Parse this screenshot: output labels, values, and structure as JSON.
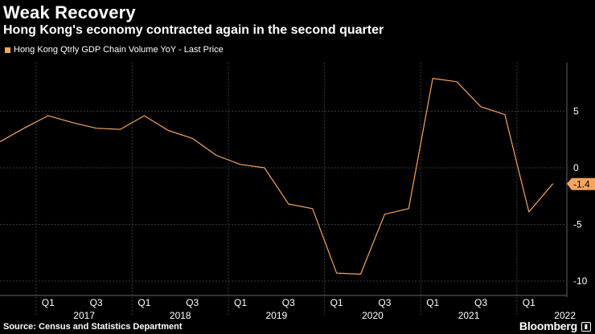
{
  "chart_data": {
    "type": "line",
    "title": "Weak Recovery",
    "subtitle": "Hong Kong's economy contracted again in the second quarter",
    "series": [
      {
        "name": "Hong Kong Qtrly GDP Chain Volume YoY - Last Price",
        "color": "#f4a460",
        "values": [
          2.3,
          3.5,
          4.6,
          4.0,
          3.5,
          3.4,
          4.6,
          3.3,
          2.6,
          1.1,
          0.3,
          0.0,
          -3.2,
          -3.6,
          -9.3,
          -9.4,
          -4.1,
          -3.6,
          7.9,
          7.6,
          5.4,
          4.7,
          -3.9,
          -1.4
        ]
      }
    ],
    "x": [
      "2016 Q3",
      "2016 Q4",
      "2017 Q1",
      "2017 Q2",
      "2017 Q3",
      "2017 Q4",
      "2018 Q1",
      "2018 Q2",
      "2018 Q3",
      "2018 Q4",
      "2019 Q1",
      "2019 Q2",
      "2019 Q3",
      "2019 Q4",
      "2020 Q1",
      "2020 Q2",
      "2020 Q3",
      "2020 Q4",
      "2021 Q1",
      "2021 Q2",
      "2021 Q3",
      "2021 Q4",
      "2022 Q1",
      "2022 Q2"
    ],
    "quarter_ticks": [
      "Q1",
      "Q3",
      "Q1",
      "Q3",
      "Q1",
      "Q3",
      "Q1",
      "Q3",
      "Q1",
      "Q3",
      "Q1"
    ],
    "years": [
      "2017",
      "2018",
      "2019",
      "2020",
      "2021",
      "2022"
    ],
    "yticks": [
      "5",
      "0",
      "-5",
      "-10"
    ],
    "ylim": [
      -11,
      9
    ],
    "last_value_label": "-1.4",
    "grid": true
  },
  "source": "Source: Census and Statistics Department",
  "brand": "Bloomberg",
  "brand_icon": "bloomberg-logo-icon"
}
